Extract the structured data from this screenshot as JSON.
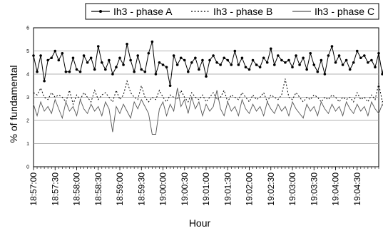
{
  "chart_data": {
    "type": "line",
    "xlabel": "Hour",
    "ylabel": "% of fundamental",
    "ylim": [
      0,
      6
    ],
    "yticks": [
      0,
      1,
      2,
      3,
      4,
      5,
      6
    ],
    "x_start": "18:57:00",
    "x_end": "19:05:00",
    "sample_interval_seconds": 5,
    "xticks": [
      "18:57:00",
      "18:57:30",
      "18:58:00",
      "18:58:30",
      "18:59:00",
      "18:59:30",
      "19:00:00",
      "19:00:30",
      "19:01:00",
      "19:01:30",
      "19:02:00",
      "19:02:30",
      "19:03:00",
      "19:03:30",
      "19:04:00",
      "19:04:30"
    ],
    "grid": "horizontal",
    "legend_position": "top",
    "series": [
      {
        "name": "Ih3 - phase A",
        "style": "solid-markers",
        "color": "#000000",
        "values": [
          4.8,
          4.1,
          4.8,
          3.7,
          4.6,
          4.7,
          5.0,
          4.6,
          4.9,
          4.1,
          4.1,
          4.7,
          4.2,
          4.1,
          4.8,
          4.5,
          4.7,
          4.2,
          5.2,
          4.5,
          4.2,
          4.6,
          4.0,
          4.3,
          4.7,
          4.4,
          5.3,
          4.6,
          4.1,
          4.8,
          4.2,
          4.1,
          4.9,
          5.4,
          4.0,
          4.5,
          4.4,
          4.3,
          3.5,
          4.8,
          4.4,
          4.7,
          4.6,
          4.1,
          4.5,
          4.7,
          4.2,
          4.6,
          3.9,
          4.6,
          4.8,
          4.5,
          4.4,
          4.7,
          4.6,
          4.4,
          5.0,
          4.4,
          4.7,
          4.3,
          4.2,
          4.6,
          4.4,
          4.3,
          4.7,
          4.5,
          5.1,
          4.4,
          4.8,
          4.6,
          4.5,
          4.6,
          4.3,
          4.8,
          4.4,
          4.7,
          4.2,
          4.9,
          4.4,
          4.1,
          4.6,
          4.0,
          4.8,
          5.2,
          4.5,
          4.8,
          4.4,
          4.6,
          4.2,
          4.5,
          5.0,
          4.7,
          4.8,
          4.5,
          4.6,
          4.3,
          4.9,
          4.0,
          4.8,
          5.2,
          4.6
        ]
      },
      {
        "name": "Ih3 - phase B",
        "style": "dotted",
        "color": "#000000",
        "values": [
          3.2,
          3.1,
          3.4,
          3.0,
          2.9,
          3.2,
          3.0,
          3.1,
          3.0,
          2.8,
          3.3,
          2.7,
          3.1,
          2.9,
          3.2,
          3.0,
          2.8,
          3.3,
          2.9,
          3.1,
          3.2,
          3.0,
          2.8,
          3.3,
          2.9,
          3.1,
          3.7,
          3.2,
          3.0,
          2.9,
          3.5,
          3.0,
          2.8,
          3.0,
          2.9,
          3.3,
          3.0,
          2.8,
          3.1,
          3.0,
          2.9,
          3.3,
          3.0,
          2.8,
          3.2,
          3.0,
          2.9,
          3.1,
          2.8,
          3.0,
          3.2,
          2.9,
          3.0,
          3.3,
          2.8,
          3.1,
          3.0,
          2.9,
          3.2,
          3.0,
          2.8,
          3.1,
          2.9,
          3.0,
          3.2,
          2.8,
          3.1,
          3.0,
          2.9,
          3.1,
          3.8,
          3.0,
          2.9,
          3.2,
          3.0,
          2.8,
          3.0,
          2.9,
          3.1,
          3.0,
          2.8,
          3.0,
          2.9,
          3.1,
          3.0,
          2.8,
          3.0,
          2.9,
          3.0,
          2.8,
          3.2,
          2.9,
          3.0,
          2.8,
          3.1,
          2.9,
          3.6,
          2.8,
          3.0,
          2.9,
          3.0
        ]
      },
      {
        "name": "Ih3 - phase C",
        "style": "solid",
        "color": "#555555",
        "values": [
          2.7,
          2.2,
          2.8,
          2.4,
          2.6,
          2.3,
          2.9,
          2.5,
          2.1,
          2.8,
          2.4,
          2.6,
          2.2,
          2.9,
          2.5,
          2.3,
          2.7,
          2.4,
          2.6,
          2.2,
          2.8,
          2.5,
          1.5,
          2.6,
          2.3,
          2.7,
          2.4,
          2.1,
          2.8,
          2.5,
          2.9,
          2.6,
          2.3,
          1.4,
          1.4,
          2.5,
          2.8,
          2.2,
          2.7,
          2.4,
          3.4,
          2.6,
          2.9,
          2.3,
          3.0,
          2.5,
          2.8,
          2.2,
          2.7,
          2.4,
          2.6,
          3.3,
          2.5,
          2.2,
          2.8,
          2.4,
          2.6,
          2.2,
          2.9,
          2.5,
          2.3,
          2.7,
          2.4,
          2.6,
          2.2,
          2.8,
          2.5,
          2.3,
          2.7,
          2.4,
          2.6,
          2.2,
          2.8,
          2.5,
          2.3,
          2.1,
          2.7,
          2.4,
          2.6,
          2.2,
          2.8,
          2.5,
          2.3,
          2.7,
          2.4,
          2.6,
          2.2,
          2.8,
          2.5,
          2.3,
          2.7,
          2.4,
          2.6,
          2.2,
          2.8,
          2.5,
          2.3,
          2.7,
          2.4,
          2.6,
          2.3
        ]
      }
    ]
  }
}
